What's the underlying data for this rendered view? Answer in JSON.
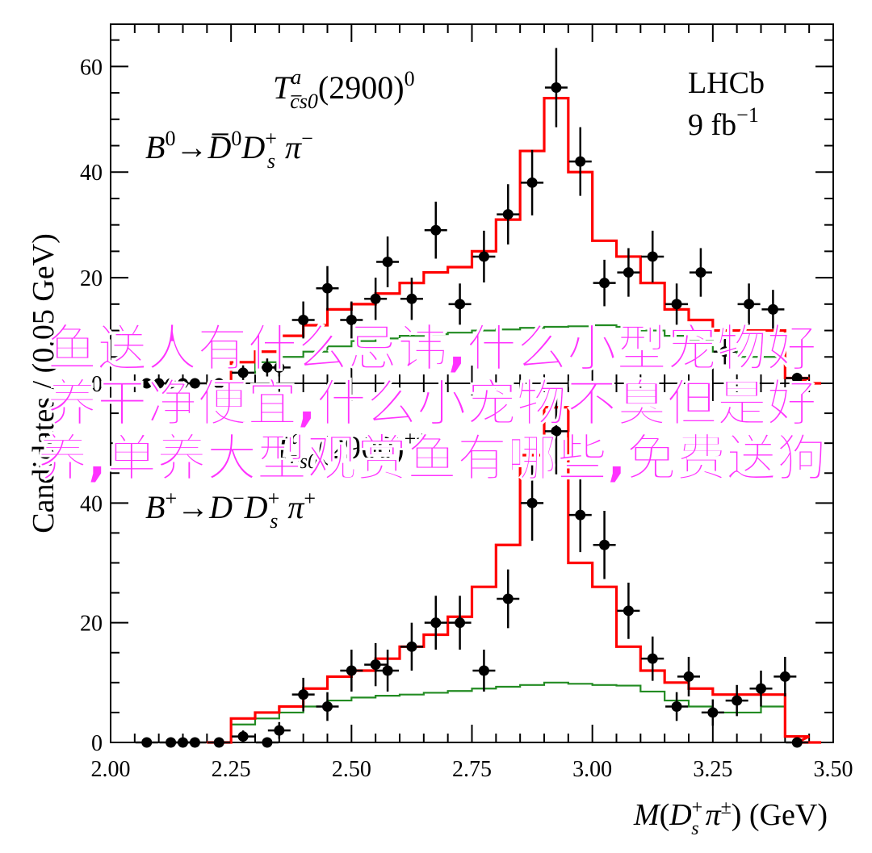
{
  "chart_data": [
    {
      "type": "line",
      "panel": "top",
      "annotation": {
        "particle": "T",
        "sup": "a",
        "sub": "c̅s0",
        "mass": "(2900)",
        "charge": "0",
        "decay_lhs": "B",
        "decay_lhs_sup": "0",
        "decay_rhs": "D̅",
        "decay_rhs_sup": "0",
        "decay_ds": "D",
        "decay_ds_sub": "s",
        "decay_ds_sup": "+",
        "decay_pi": "π",
        "decay_pi_sup": "−"
      },
      "experiment": {
        "name": "LHCb",
        "lumi": "9 fb",
        "lumi_sup": "−1"
      },
      "ylabel": "Candidates / (0.05 GeV)",
      "ylim": [
        0,
        68
      ],
      "yticks": [
        "0",
        "20",
        "40",
        "60"
      ],
      "points": [
        {
          "x": 2.075,
          "y": 0,
          "err": 0
        },
        {
          "x": 2.1,
          "y": 0,
          "err": 0
        },
        {
          "x": 2.125,
          "y": 0,
          "err": 0
        },
        {
          "x": 2.15,
          "y": 0,
          "err": 0
        },
        {
          "x": 2.175,
          "y": 0,
          "err": 0
        },
        {
          "x": 2.225,
          "y": 0,
          "err": 0
        },
        {
          "x": 2.275,
          "y": 2,
          "err": 1.4
        },
        {
          "x": 2.325,
          "y": 3,
          "err": 1.7
        },
        {
          "x": 2.35,
          "y": 3,
          "err": 1.7
        },
        {
          "x": 2.4,
          "y": 12,
          "err": 3.5
        },
        {
          "x": 2.45,
          "y": 18,
          "err": 4.2
        },
        {
          "x": 2.5,
          "y": 12,
          "err": 3.5
        },
        {
          "x": 2.55,
          "y": 16,
          "err": 4.0
        },
        {
          "x": 2.575,
          "y": 23,
          "err": 4.8
        },
        {
          "x": 2.625,
          "y": 16,
          "err": 4.0
        },
        {
          "x": 2.675,
          "y": 29,
          "err": 5.4
        },
        {
          "x": 2.725,
          "y": 15,
          "err": 3.9
        },
        {
          "x": 2.775,
          "y": 24,
          "err": 4.9
        },
        {
          "x": 2.825,
          "y": 32,
          "err": 5.7
        },
        {
          "x": 2.875,
          "y": 38,
          "err": 6.2
        },
        {
          "x": 2.925,
          "y": 56,
          "err": 7.5
        },
        {
          "x": 2.975,
          "y": 42,
          "err": 6.5
        },
        {
          "x": 3.025,
          "y": 19,
          "err": 4.4
        },
        {
          "x": 3.075,
          "y": 21,
          "err": 4.6
        },
        {
          "x": 3.125,
          "y": 24,
          "err": 4.9
        },
        {
          "x": 3.175,
          "y": 15,
          "err": 3.9
        },
        {
          "x": 3.225,
          "y": 21,
          "err": 4.6
        },
        {
          "x": 3.275,
          "y": 6,
          "err": 2.4
        },
        {
          "x": 3.325,
          "y": 15,
          "err": 3.9
        },
        {
          "x": 3.375,
          "y": 14,
          "err": 3.7
        },
        {
          "x": 3.425,
          "y": 1,
          "err": 1.0
        }
      ],
      "total_fit": [
        [
          2.225,
          0
        ],
        [
          2.275,
          4
        ],
        [
          2.325,
          6
        ],
        [
          2.375,
          9
        ],
        [
          2.425,
          11
        ],
        [
          2.475,
          14
        ],
        [
          2.525,
          15
        ],
        [
          2.575,
          17
        ],
        [
          2.625,
          19
        ],
        [
          2.675,
          21
        ],
        [
          2.725,
          22
        ],
        [
          2.775,
          25
        ],
        [
          2.825,
          31
        ],
        [
          2.875,
          44
        ],
        [
          2.925,
          54
        ],
        [
          2.975,
          40
        ],
        [
          3.025,
          27
        ],
        [
          3.075,
          24
        ],
        [
          3.125,
          19
        ],
        [
          3.175,
          14
        ],
        [
          3.225,
          12
        ],
        [
          3.275,
          10
        ],
        [
          3.325,
          10
        ],
        [
          3.375,
          10
        ],
        [
          3.425,
          1
        ],
        [
          3.45,
          0
        ]
      ],
      "background_fit": [
        [
          2.225,
          0
        ],
        [
          2.275,
          2
        ],
        [
          2.325,
          4
        ],
        [
          2.375,
          5
        ],
        [
          2.425,
          6
        ],
        [
          2.475,
          7
        ],
        [
          2.525,
          8
        ],
        [
          2.575,
          8.5
        ],
        [
          2.625,
          9
        ],
        [
          2.675,
          9.3
        ],
        [
          2.725,
          9.6
        ],
        [
          2.775,
          10
        ],
        [
          2.825,
          10.2
        ],
        [
          2.875,
          10.5
        ],
        [
          2.925,
          10.7
        ],
        [
          2.975,
          10.8
        ],
        [
          3.025,
          11
        ],
        [
          3.075,
          10.7
        ],
        [
          3.125,
          10
        ],
        [
          3.175,
          9
        ],
        [
          3.225,
          8
        ],
        [
          3.275,
          6
        ],
        [
          3.325,
          5
        ],
        [
          3.375,
          5
        ],
        [
          3.425,
          1
        ],
        [
          3.45,
          0
        ]
      ],
      "colors": {
        "total": "#ff0000",
        "background": "#228b22",
        "data": "#000000"
      }
    },
    {
      "type": "line",
      "panel": "bottom",
      "annotation": {
        "particle": "T",
        "sup": "a",
        "sub": "c̅s0",
        "mass": "(2900)",
        "charge": "++",
        "decay_lhs": "B",
        "decay_lhs_sup": "+",
        "decay_rhs": "D",
        "decay_rhs_sup": "−",
        "decay_ds": "D",
        "decay_ds_sub": "s",
        "decay_ds_sup": "+",
        "decay_pi": "π",
        "decay_pi_sup": "+"
      },
      "xlabel": "M(D_s^+ π^±) (GeV)",
      "xlabel_parts": {
        "m": "M",
        "open": "(",
        "d": "D",
        "s": "s",
        "plus": "+",
        "pi": "π",
        "pm": "±",
        "close": ") (GeV)"
      },
      "xlim": [
        2.0,
        3.5
      ],
      "xticks": [
        "2.00",
        "2.25",
        "2.50",
        "2.75",
        "3.00",
        "3.25",
        "3.50"
      ],
      "ylim": [
        0,
        60
      ],
      "yticks": [
        "0",
        "20",
        "40"
      ],
      "points": [
        {
          "x": 2.075,
          "y": 0,
          "err": 0
        },
        {
          "x": 2.125,
          "y": 0,
          "err": 0
        },
        {
          "x": 2.15,
          "y": 0,
          "err": 0
        },
        {
          "x": 2.175,
          "y": 0,
          "err": 0
        },
        {
          "x": 2.225,
          "y": 0,
          "err": 0
        },
        {
          "x": 2.275,
          "y": 1,
          "err": 1.0
        },
        {
          "x": 2.325,
          "y": 0,
          "err": 0
        },
        {
          "x": 2.35,
          "y": 2,
          "err": 1.4
        },
        {
          "x": 2.4,
          "y": 8,
          "err": 2.8
        },
        {
          "x": 2.45,
          "y": 6,
          "err": 2.4
        },
        {
          "x": 2.5,
          "y": 12,
          "err": 3.5
        },
        {
          "x": 2.55,
          "y": 13,
          "err": 3.6
        },
        {
          "x": 2.575,
          "y": 12,
          "err": 3.5
        },
        {
          "x": 2.625,
          "y": 16,
          "err": 4.0
        },
        {
          "x": 2.675,
          "y": 20,
          "err": 4.5
        },
        {
          "x": 2.725,
          "y": 20,
          "err": 4.5
        },
        {
          "x": 2.775,
          "y": 12,
          "err": 3.5
        },
        {
          "x": 2.825,
          "y": 24,
          "err": 4.9
        },
        {
          "x": 2.875,
          "y": 40,
          "err": 6.3
        },
        {
          "x": 2.925,
          "y": 52,
          "err": 7.2
        },
        {
          "x": 2.975,
          "y": 38,
          "err": 6.2
        },
        {
          "x": 3.025,
          "y": 33,
          "err": 5.7
        },
        {
          "x": 3.075,
          "y": 22,
          "err": 4.7
        },
        {
          "x": 3.125,
          "y": 14,
          "err": 3.7
        },
        {
          "x": 3.175,
          "y": 6,
          "err": 2.4
        },
        {
          "x": 3.2,
          "y": 11,
          "err": 3.3
        },
        {
          "x": 3.25,
          "y": 5,
          "err": 2.2
        },
        {
          "x": 3.3,
          "y": 7,
          "err": 2.6
        },
        {
          "x": 3.35,
          "y": 9,
          "err": 3.0
        },
        {
          "x": 3.4,
          "y": 11,
          "err": 3.3
        },
        {
          "x": 3.425,
          "y": 0,
          "err": 0
        }
      ],
      "total_fit": [
        [
          2.225,
          0
        ],
        [
          2.275,
          4
        ],
        [
          2.325,
          5
        ],
        [
          2.375,
          6
        ],
        [
          2.425,
          9
        ],
        [
          2.475,
          11
        ],
        [
          2.525,
          12
        ],
        [
          2.575,
          14
        ],
        [
          2.625,
          16
        ],
        [
          2.675,
          18
        ],
        [
          2.725,
          21
        ],
        [
          2.775,
          26
        ],
        [
          2.825,
          33
        ],
        [
          2.875,
          48
        ],
        [
          2.925,
          56
        ],
        [
          2.975,
          30
        ],
        [
          3.025,
          26
        ],
        [
          3.075,
          16
        ],
        [
          3.125,
          12
        ],
        [
          3.175,
          10
        ],
        [
          3.225,
          9
        ],
        [
          3.275,
          8
        ],
        [
          3.325,
          8
        ],
        [
          3.375,
          8
        ],
        [
          3.425,
          1
        ],
        [
          3.45,
          0
        ]
      ],
      "background_fit": [
        [
          2.225,
          0
        ],
        [
          2.275,
          3
        ],
        [
          2.325,
          4
        ],
        [
          2.375,
          5
        ],
        [
          2.425,
          6
        ],
        [
          2.475,
          7
        ],
        [
          2.525,
          7.5
        ],
        [
          2.575,
          7.8
        ],
        [
          2.625,
          8
        ],
        [
          2.675,
          8.3
        ],
        [
          2.725,
          8.6
        ],
        [
          2.775,
          9
        ],
        [
          2.825,
          9.3
        ],
        [
          2.875,
          9.6
        ],
        [
          2.925,
          10
        ],
        [
          2.975,
          9.8
        ],
        [
          3.025,
          9.6
        ],
        [
          3.075,
          9.5
        ],
        [
          3.125,
          8.5
        ],
        [
          3.175,
          7
        ],
        [
          3.225,
          6
        ],
        [
          3.275,
          5
        ],
        [
          3.325,
          5
        ],
        [
          3.375,
          6
        ],
        [
          3.425,
          1
        ],
        [
          3.45,
          0
        ]
      ],
      "colors": {
        "total": "#ff0000",
        "background": "#228b22",
        "data": "#000000"
      }
    }
  ],
  "watermark": {
    "text": "鱼送人有什么忌讳,什么小型宠物好养干净便宜,什么小宠物不臭但是好养,单养大型观赏鱼有哪些,免费送狗",
    "color": "#ff33ff"
  }
}
